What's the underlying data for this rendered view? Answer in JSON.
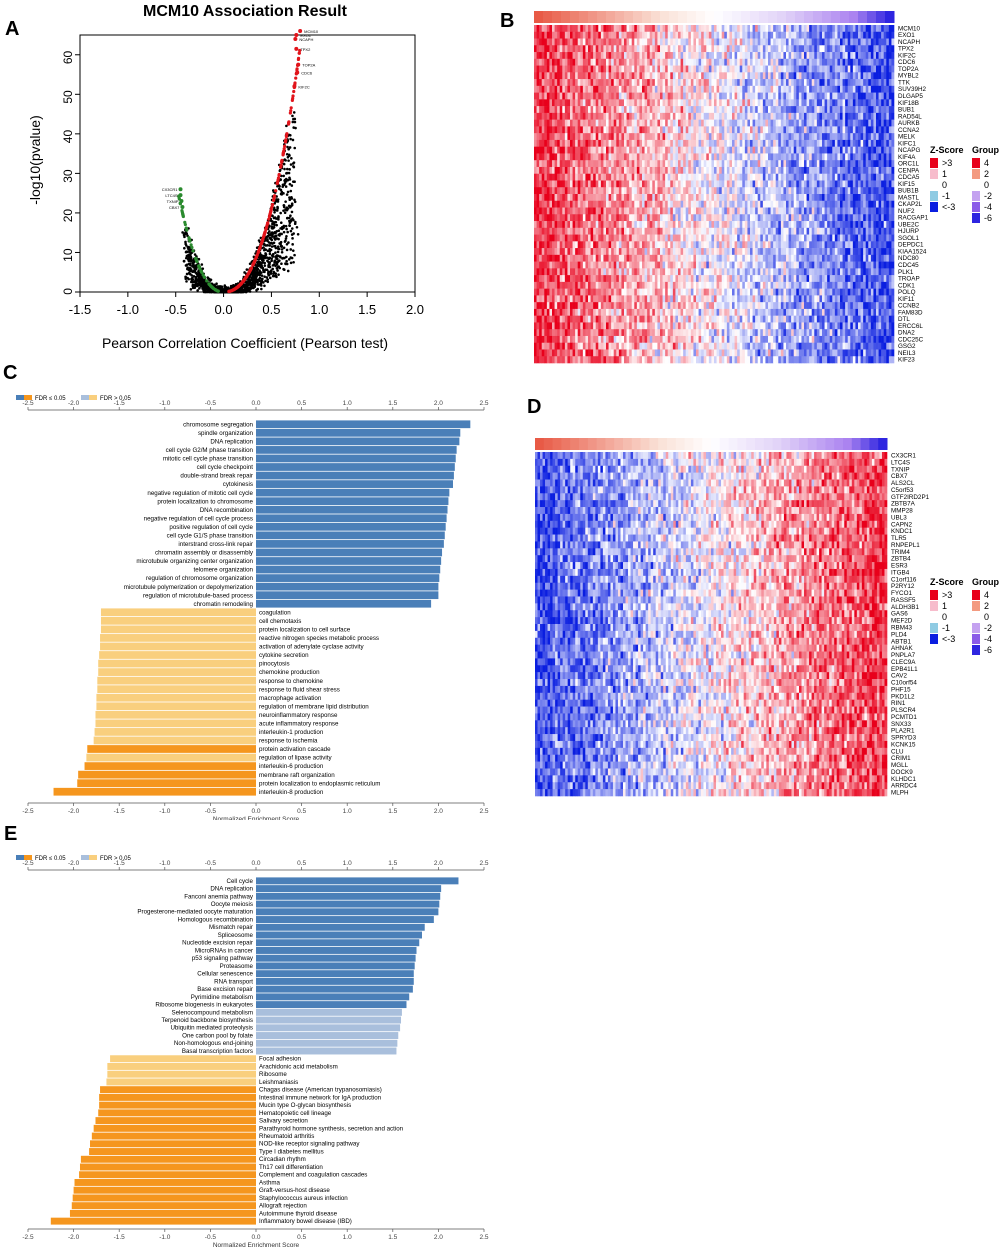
{
  "colors": {
    "sig_pos": "#4a7fb8",
    "sig_neg": "#f5961e",
    "nonsig_pos": "#a9bfdc",
    "nonsig_neg": "#f9cf7e",
    "zs_gt3": "#e8001b",
    "zs_1": "#f7bccc",
    "zs_0": "#ffffff",
    "zs_m1": "#8fcbe3",
    "zs_lt3": "#0a1ee0",
    "grp_4": "#e8001b",
    "grp_2": "#f39a80",
    "grp_0": "#ffffff",
    "grp_m2": "#c4a2f0",
    "grp_m4": "#8b5be8",
    "grp_m6": "#2e25e0"
  },
  "chart_data": [
    {
      "panel": "A",
      "type": "scatter",
      "title": "MCM10 Association Result",
      "xlabel": "Pearson Correlation Coefficient (Pearson test)",
      "ylabel": "-log10(pvalue)",
      "xlim": [
        -1.5,
        2.0
      ],
      "ylim": [
        0,
        65
      ],
      "xticks": [
        "-1.5",
        "-1.0",
        "-0.5",
        "0.0",
        "0.5",
        "1.0",
        "1.5",
        "2.0"
      ],
      "yticks": [
        "0",
        "10",
        "20",
        "30",
        "40",
        "50",
        "60"
      ],
      "labels_pos": [
        "MCM10",
        "EXO1",
        "NCAPH",
        "TPX2",
        "TOP2A",
        "CDC6",
        "KIF2C"
      ],
      "labels_neg": [
        "CX3CR1",
        "LTC4S",
        "TXNIP",
        "CBX7"
      ]
    },
    {
      "panel": "B",
      "type": "heatmap",
      "genes": [
        "MCM10",
        "EXO1",
        "NCAPH",
        "TPX2",
        "KIF2C",
        "CDC6",
        "TOP2A",
        "MYBL2",
        "TTK",
        "SUV39H2",
        "DLGAP5",
        "KIF18B",
        "BUB1",
        "RAD54L",
        "AURKB",
        "CCNA2",
        "MELK",
        "KIFC1",
        "NCAPG",
        "KIF4A",
        "ORC1L",
        "CENPA",
        "CDCA5",
        "KIF15",
        "BUB1B",
        "MASTL",
        "CKAP2L",
        "NUF2",
        "RACGAP1",
        "UBE2C",
        "HJURP",
        "SGOL1",
        "DEPDC1",
        "KIAA1524",
        "NDC80",
        "CDC45",
        "PLK1",
        "TROAP",
        "CDK1",
        "POLQ",
        "KIF11",
        "CCNB2",
        "FAM83D",
        "DTL",
        "ERCC6L",
        "DNA2",
        "CDC25C",
        "GSG2",
        "NEIL3",
        "KIF23"
      ],
      "trend": "positive"
    },
    {
      "panel": "C",
      "type": "bar",
      "orientation": "horizontal",
      "xlabel": "Normalized Enrichment Score",
      "xlim": [
        -2.5,
        2.5
      ],
      "xticks": [
        "-2.5",
        "-2.0",
        "-1.5",
        "-1.0",
        "-0.5",
        "0.0",
        "0.5",
        "1.0",
        "1.5",
        "2.0",
        "2.5"
      ],
      "legend": [
        "FDR ≤ 0.05",
        "FDR > 0.05"
      ],
      "categories": [
        "chromosome segregation",
        "spindle organization",
        "DNA replication",
        "cell cycle G2/M phase transition",
        "mitotic cell cycle phase transition",
        "cell cycle checkpoint",
        "double-strand break repair",
        "cytokinesis",
        "negative regulation of mitotic cell cycle",
        "protein localization to chromosome",
        "DNA recombination",
        "negative regulation of cell cycle process",
        "positive regulation of cell cycle",
        "cell cycle G1/S phase transition",
        "interstrand cross-link repair",
        "chromatin assembly or disassembly",
        "microtubule organizing center organization",
        "telomere organization",
        "regulation of chromosome organization",
        "microtubule polymerization or depolymerization",
        "regulation of microtubule-based process",
        "chromatin remodeling",
        "coagulation",
        "cell chemotaxis",
        "protein localization to cell surface",
        "reactive nitrogen species metabolic process",
        "activation of adenylate cyclase activity",
        "cytokine secretion",
        "pinocytosis",
        "chemokine production",
        "response to chemokine",
        "response to fluid shear stress",
        "macrophage activation",
        "regulation of membrane lipid distribution",
        "neuroinflammatory response",
        "acute inflammatory response",
        "interleukin-1 production",
        "response to ischemia",
        "protein activation cascade",
        "regulation of lipase activity",
        "interleukin-6 production",
        "membrane raft organization",
        "protein localization to endoplasmic reticulum",
        "interleukin-8 production"
      ],
      "values": [
        2.35,
        2.24,
        2.23,
        2.2,
        2.19,
        2.18,
        2.17,
        2.16,
        2.12,
        2.11,
        2.1,
        2.09,
        2.08,
        2.07,
        2.06,
        2.04,
        2.03,
        2.02,
        2.01,
        2.0,
        2.0,
        1.92,
        -1.7,
        -1.7,
        -1.7,
        -1.71,
        -1.71,
        -1.72,
        -1.73,
        -1.73,
        -1.74,
        -1.74,
        -1.75,
        -1.75,
        -1.76,
        -1.76,
        -1.77,
        -1.78,
        -1.85,
        -1.86,
        -1.88,
        -1.95,
        -1.96,
        -2.22
      ],
      "significant": [
        true,
        true,
        true,
        true,
        true,
        true,
        true,
        true,
        true,
        true,
        true,
        true,
        true,
        true,
        true,
        true,
        true,
        true,
        true,
        true,
        true,
        true,
        false,
        false,
        false,
        false,
        false,
        false,
        false,
        false,
        false,
        false,
        false,
        false,
        false,
        false,
        false,
        false,
        true,
        false,
        true,
        true,
        true,
        true
      ]
    },
    {
      "panel": "D",
      "type": "heatmap",
      "genes": [
        "CX3CR1",
        "LTC4S",
        "TXNIP",
        "CBX7",
        "ALS2CL",
        "C5orf53",
        "GTF2IRD2P1",
        "ZBTB7A",
        "MMP28",
        "UBL3",
        "CAPN2",
        "KNDC1",
        "TLR5",
        "RNPEPL1",
        "TRIM4",
        "ZBTB4",
        "ESR3",
        "ITGB4",
        "C1orf116",
        "P2RY12",
        "FYCO1",
        "RASSF5",
        "ALDH3B1",
        "GAS6",
        "MEF2D",
        "RBM43",
        "PLD4",
        "ABTB1",
        "AHNAK",
        "PNPLA7",
        "CLEC9A",
        "EPB41L1",
        "CAV2",
        "C10orf54",
        "PHF15",
        "PKD1L2",
        "RIN1",
        "PLSCR4",
        "PCMTD1",
        "SNX33",
        "PLA2R1",
        "SPRYD3",
        "KCNK15",
        "CLU",
        "CRIM1",
        "MGLL",
        "DOCK9",
        "KLHDC1",
        "ARRDC4",
        "MLPH"
      ],
      "trend": "negative"
    },
    {
      "panel": "E",
      "type": "bar",
      "orientation": "horizontal",
      "xlabel": "Normalized Enrichment Score",
      "xlim": [
        -2.5,
        2.5
      ],
      "xticks": [
        "-2.5",
        "-2.0",
        "-1.5",
        "-1.0",
        "-0.5",
        "0.0",
        "0.5",
        "1.0",
        "1.5",
        "2.0",
        "2.5"
      ],
      "legend": [
        "FDR ≤ 0.05",
        "FDR > 0.05"
      ],
      "categories": [
        "Cell cycle",
        "DNA replication",
        "Fanconi anemia pathway",
        "Oocyte meiosis",
        "Progesterone-mediated oocyte maturation",
        "Homologous recombination",
        "Mismatch repair",
        "Spliceosome",
        "Nucleotide excision repair",
        "MicroRNAs in cancer",
        "p53 signaling pathway",
        "Proteasome",
        "Cellular senescence",
        "RNA transport",
        "Base excision repair",
        "Pyrimidine metabolism",
        "Ribosome biogenesis in eukaryotes",
        "Selenocompound metabolism",
        "Terpenoid backbone biosynthesis",
        "Ubiquitin mediated proteolysis",
        "One carbon pool by folate",
        "Non-homologous end-joining",
        "Basal transcription factors",
        "Focal adhesion",
        "Arachidonic acid metabolism",
        "Ribosome",
        "Leishmaniasis",
        "Chagas disease (American trypanosomiasis)",
        "Intestinal immune network for IgA production",
        "Mucin type O-glycan biosynthesis",
        "Hematopoietic cell lineage",
        "Salivary secretion",
        "Parathyroid hormone synthesis, secretion and action",
        "Rheumatoid arthritis",
        "NOD-like receptor signaling pathway",
        "Type I diabetes mellitus",
        "Circadian rhythm",
        "Th17 cell differentiation",
        "Complement and coagulation cascades",
        "Asthma",
        "Graft-versus-host disease",
        "Staphylococcus aureus infection",
        "Allograft rejection",
        "Autoimmune thyroid disease",
        "Inflammatory bowel disease (IBD)"
      ],
      "values": [
        2.22,
        2.03,
        2.02,
        2.01,
        2.0,
        1.95,
        1.85,
        1.82,
        1.79,
        1.76,
        1.75,
        1.74,
        1.73,
        1.73,
        1.72,
        1.68,
        1.65,
        1.6,
        1.59,
        1.58,
        1.56,
        1.55,
        1.54,
        -1.6,
        -1.63,
        -1.63,
        -1.64,
        -1.71,
        -1.72,
        -1.72,
        -1.73,
        -1.76,
        -1.78,
        -1.8,
        -1.82,
        -1.83,
        -1.92,
        -1.93,
        -1.94,
        -1.99,
        -2.0,
        -2.01,
        -2.02,
        -2.04,
        -2.25
      ],
      "significant": [
        true,
        true,
        true,
        true,
        true,
        true,
        true,
        true,
        true,
        true,
        true,
        true,
        true,
        true,
        true,
        true,
        true,
        false,
        false,
        false,
        false,
        false,
        false,
        false,
        false,
        false,
        false,
        true,
        true,
        true,
        true,
        true,
        true,
        true,
        true,
        true,
        true,
        true,
        true,
        true,
        true,
        true,
        true,
        true,
        true
      ]
    }
  ],
  "heatmap_legend": {
    "zscore_title": "Z-Score",
    "zscore_labels": [
      ">3",
      "1",
      "0",
      "-1",
      "<-3"
    ],
    "group_title": "Group",
    "group_labels": [
      "4",
      "2",
      "0",
      "-2",
      "-4",
      "-6"
    ]
  },
  "panel_labels": [
    "A",
    "B",
    "C",
    "D",
    "E"
  ]
}
